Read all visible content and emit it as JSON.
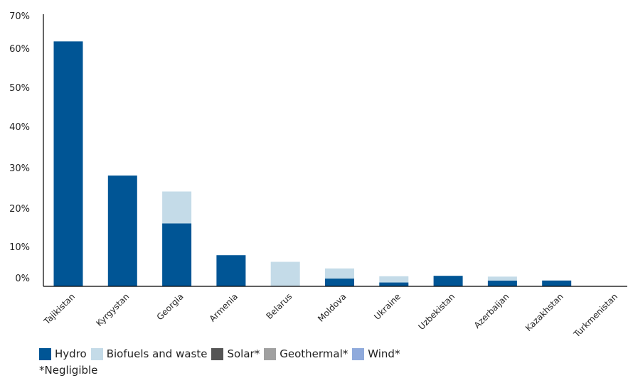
{
  "chart_data": {
    "type": "bar",
    "stacked": true,
    "categories": [
      "Tajikistan",
      "Kyrgystan",
      "Georgia",
      "Armenia",
      "Belarus",
      "Moldova",
      "Ukraine",
      "Uzbekistan",
      "Azerbaijan",
      "Kazakhstan",
      "Turkmenistan"
    ],
    "series": [
      {
        "name": "Hydro",
        "color": "#005595",
        "values": [
          63,
          28.5,
          16.2,
          8,
          0,
          2,
          1,
          2.7,
          1.5,
          1.5,
          0
        ]
      },
      {
        "name": "Biofuels and waste",
        "color": "#c4dbe8",
        "values": [
          0,
          0,
          8.2,
          0,
          6.3,
          2.6,
          1.6,
          0,
          1,
          0,
          0
        ]
      },
      {
        "name": "Solar*",
        "color": "#555555",
        "values": [
          0,
          0,
          0,
          0,
          0,
          0,
          0,
          0,
          0,
          0,
          0
        ]
      },
      {
        "name": "Geothermal*",
        "color": "#a0a0a0",
        "values": [
          0,
          0,
          0,
          0,
          0,
          0,
          0,
          0,
          0,
          0,
          0
        ]
      },
      {
        "name": "Wind*",
        "color": "#8faadc",
        "values": [
          0,
          0,
          0,
          0,
          0,
          0,
          0,
          0,
          0,
          0,
          0
        ]
      }
    ],
    "ylim": [
      0,
      70
    ],
    "yticks": [
      "0%",
      "10%",
      "20%",
      "30%",
      "40%",
      "50%",
      "60%",
      "70%"
    ],
    "grid": false,
    "legend_position": "bottom-left",
    "footnote": "*Negligible"
  }
}
